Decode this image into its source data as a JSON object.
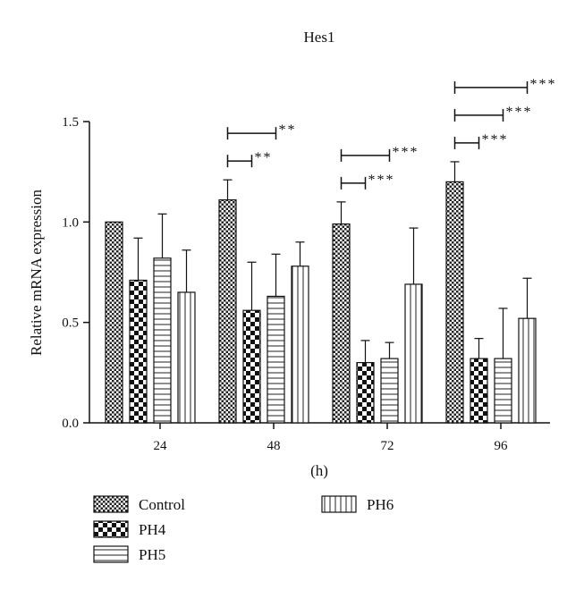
{
  "chart_data": {
    "type": "bar",
    "title": "Hes1",
    "xlabel": "(h)",
    "ylabel": "Relative mRNA expression",
    "ylim": [
      0,
      1.5
    ],
    "yticks": [
      "0.0",
      "0.5",
      "1.0",
      "1.5"
    ],
    "categories": [
      "24",
      "48",
      "72",
      "96"
    ],
    "series": [
      {
        "name": "Control",
        "pattern": "checker-small",
        "values": [
          1.0,
          1.11,
          0.99,
          1.2
        ],
        "errors": [
          0.0,
          0.1,
          0.11,
          0.1
        ]
      },
      {
        "name": "PH4",
        "pattern": "checker-large",
        "values": [
          0.71,
          0.56,
          0.3,
          0.32
        ],
        "errors": [
          0.21,
          0.24,
          0.11,
          0.1
        ]
      },
      {
        "name": "PH5",
        "pattern": "horizontal-lines",
        "values": [
          0.82,
          0.63,
          0.32,
          0.32
        ],
        "errors": [
          0.22,
          0.21,
          0.08,
          0.25
        ]
      },
      {
        "name": "PH6",
        "pattern": "vertical-lines",
        "values": [
          0.65,
          0.78,
          0.69,
          0.52
        ],
        "errors": [
          0.21,
          0.12,
          0.28,
          0.2
        ]
      }
    ],
    "significance": [
      {
        "category": "48",
        "from": "Control",
        "to": "PH4",
        "label": "**"
      },
      {
        "category": "48",
        "from": "Control",
        "to": "PH5",
        "label": "**"
      },
      {
        "category": "72",
        "from": "Control",
        "to": "PH4",
        "label": "***"
      },
      {
        "category": "72",
        "from": "Control",
        "to": "PH5",
        "label": "***"
      },
      {
        "category": "96",
        "from": "Control",
        "to": "PH4",
        "label": "***"
      },
      {
        "category": "96",
        "from": "Control",
        "to": "PH5",
        "label": "***"
      },
      {
        "category": "96",
        "from": "Control",
        "to": "PH6",
        "label": "***"
      }
    ],
    "legend": "bottom-left",
    "grid": false
  }
}
